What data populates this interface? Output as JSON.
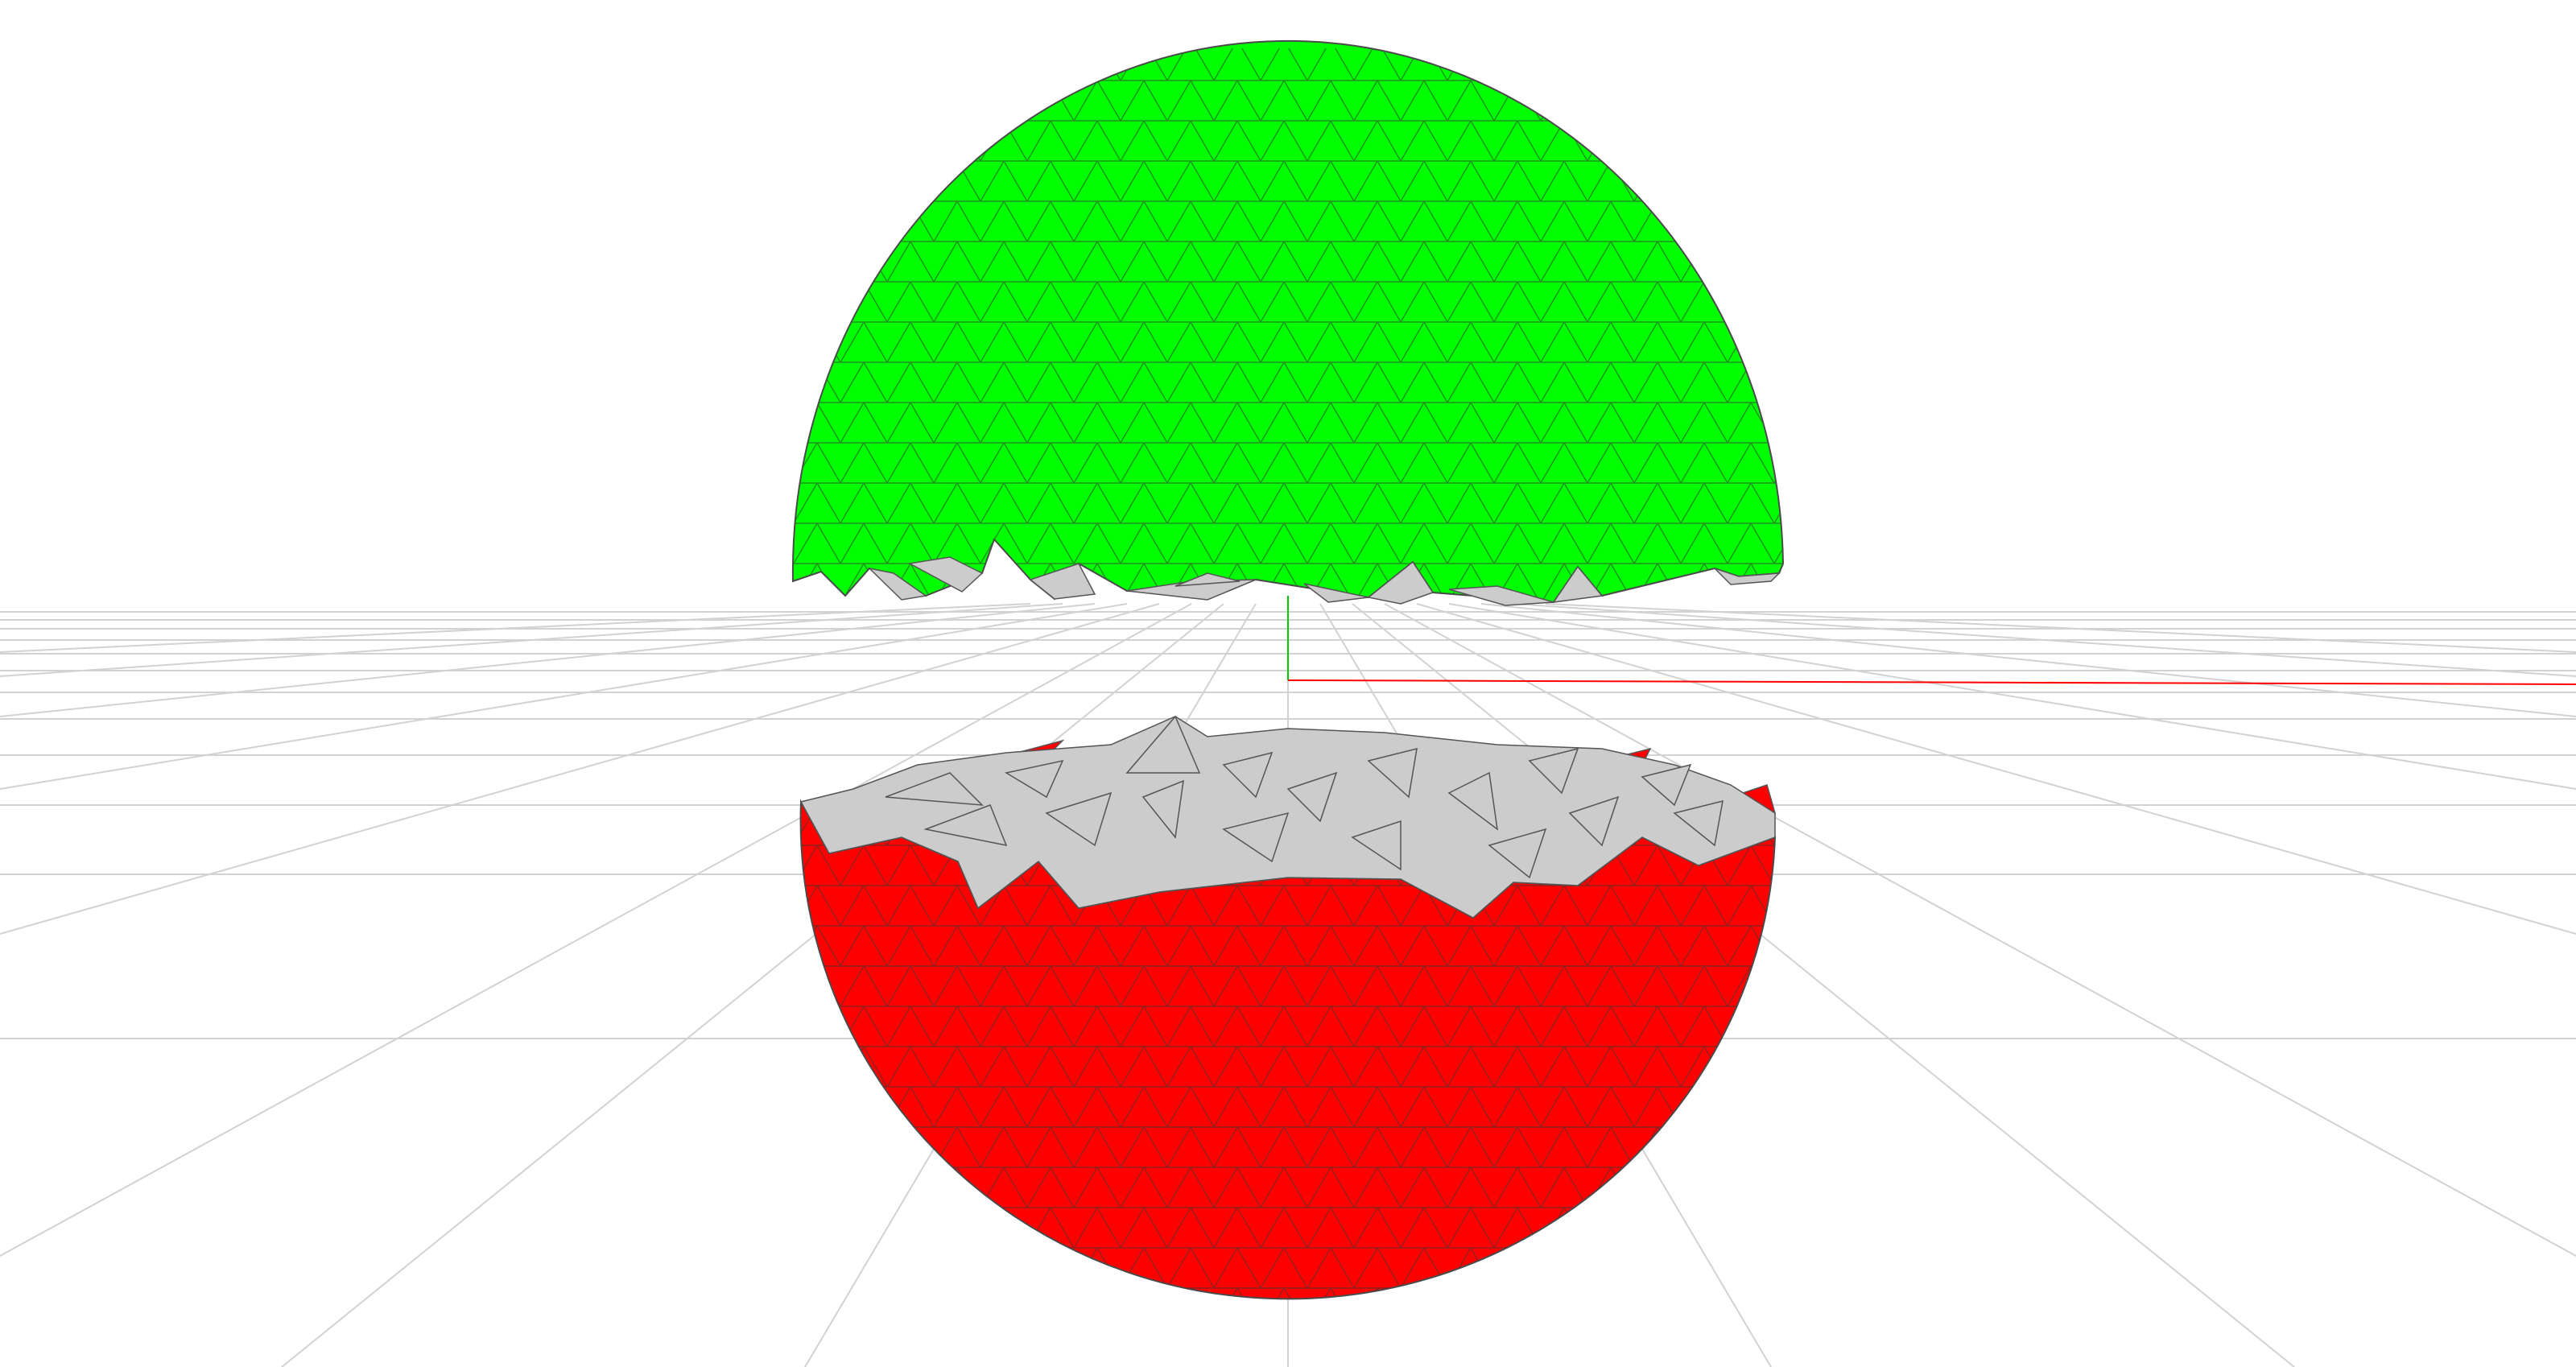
{
  "viewport": {
    "background_color": "#ffffff"
  },
  "scene": {
    "grid": {
      "color": "#cfcfcf",
      "visible": true
    },
    "axes": {
      "x_axis_color": "#ff0000",
      "y_axis_color": "#00cc00"
    },
    "upper_hemisphere": {
      "mesh": "sphere-top-half",
      "surface_color": "#00ff00",
      "cut_face_color": "#cccccc",
      "edge_color": "#555555"
    },
    "lower_hemisphere": {
      "mesh": "sphere-bottom-half",
      "surface_color": "#ff0000",
      "cut_face_color": "#cccccc",
      "edge_color": "#555555"
    }
  }
}
